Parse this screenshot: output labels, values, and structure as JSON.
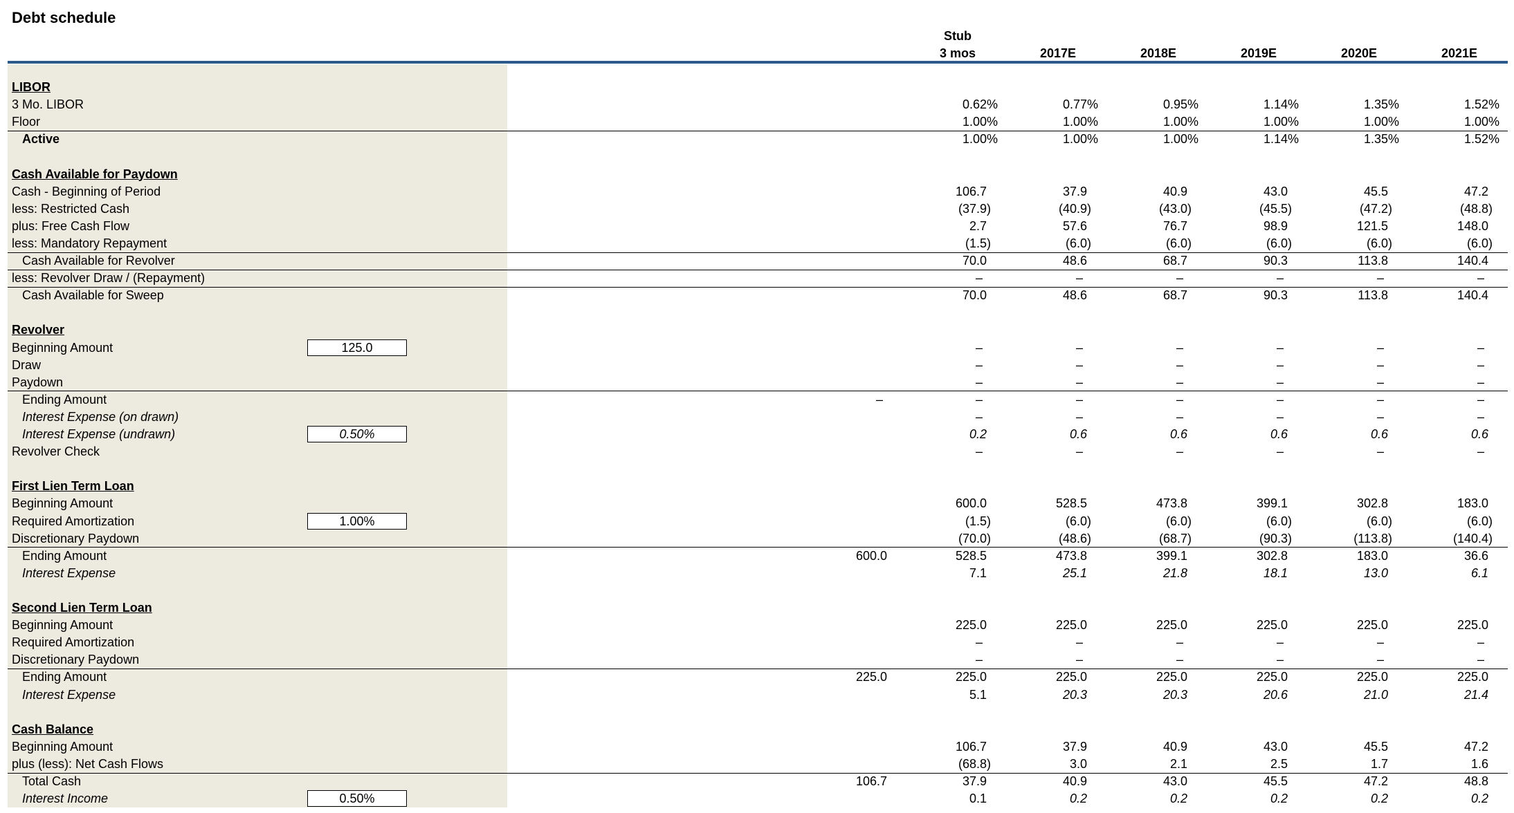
{
  "header": {
    "title": "Debt schedule",
    "stub_top": "Stub",
    "columns": [
      "3 mos",
      "2017E",
      "2018E",
      "2019E",
      "2020E",
      "2021E"
    ]
  },
  "sections": [
    {
      "title": "LIBOR",
      "rows": [
        {
          "label": "3 Mo. LIBOR",
          "values": [
            "0.62%",
            "0.77%",
            "0.95%",
            "1.14%",
            "1.35%",
            "1.52%"
          ]
        },
        {
          "label": "Floor",
          "values": [
            "1.00%",
            "1.00%",
            "1.00%",
            "1.00%",
            "1.00%",
            "1.00%"
          ]
        },
        {
          "label": "Active",
          "values": [
            "1.00%",
            "1.00%",
            "1.00%",
            "1.14%",
            "1.35%",
            "1.52%"
          ]
        }
      ]
    },
    {
      "title": "Cash Available for Paydown",
      "rows": [
        {
          "label": "Cash - Beginning of Period",
          "values": [
            "106.7",
            "37.9",
            "40.9",
            "43.0",
            "45.5",
            "47.2"
          ]
        },
        {
          "label": "less: Restricted Cash",
          "values": [
            "(37.9)",
            "(40.9)",
            "(43.0)",
            "(45.5)",
            "(47.2)",
            "(48.8)"
          ]
        },
        {
          "label": "plus: Free Cash Flow",
          "values": [
            "2.7",
            "57.6",
            "76.7",
            "98.9",
            "121.5",
            "148.0"
          ]
        },
        {
          "label": "less: Mandatory Repayment",
          "values": [
            "(1.5)",
            "(6.0)",
            "(6.0)",
            "(6.0)",
            "(6.0)",
            "(6.0)"
          ]
        },
        {
          "label": "Cash Available for Revolver",
          "values": [
            "70.0",
            "48.6",
            "68.7",
            "90.3",
            "113.8",
            "140.4"
          ]
        },
        {
          "label": "less: Revolver Draw / (Repayment)",
          "values": [
            "–",
            "–",
            "–",
            "–",
            "–",
            "–"
          ]
        },
        {
          "label": "Cash Available for Sweep",
          "values": [
            "70.0",
            "48.6",
            "68.7",
            "90.3",
            "113.8",
            "140.4"
          ]
        }
      ]
    },
    {
      "title": "Revolver",
      "rows": [
        {
          "label": "Beginning Amount",
          "input": "125.0",
          "values": [
            "–",
            "–",
            "–",
            "–",
            "–",
            "–"
          ]
        },
        {
          "label": "Draw",
          "values": [
            "–",
            "–",
            "–",
            "–",
            "–",
            "–"
          ]
        },
        {
          "label": "Paydown",
          "values": [
            "–",
            "–",
            "–",
            "–",
            "–",
            "–"
          ]
        },
        {
          "label": "Ending Amount",
          "pre": "–",
          "values": [
            "–",
            "–",
            "–",
            "–",
            "–",
            "–"
          ]
        },
        {
          "label": "Interest Expense (on drawn)",
          "values": [
            "–",
            "–",
            "–",
            "–",
            "–",
            "–"
          ]
        },
        {
          "label": "Interest Expense (undrawn)",
          "input": "0.50%",
          "values": [
            "0.2",
            "0.6",
            "0.6",
            "0.6",
            "0.6",
            "0.6"
          ]
        },
        {
          "label": "Revolver Check",
          "values": [
            "–",
            "–",
            "–",
            "–",
            "–",
            "–"
          ]
        }
      ]
    },
    {
      "title": "First Lien Term Loan",
      "rows": [
        {
          "label": "Beginning Amount",
          "values": [
            "600.0",
            "528.5",
            "473.8",
            "399.1",
            "302.8",
            "183.0"
          ]
        },
        {
          "label": "Required Amortization",
          "input": "1.00%",
          "values": [
            "(1.5)",
            "(6.0)",
            "(6.0)",
            "(6.0)",
            "(6.0)",
            "(6.0)"
          ]
        },
        {
          "label": "Discretionary Paydown",
          "values": [
            "(70.0)",
            "(48.6)",
            "(68.7)",
            "(90.3)",
            "(113.8)",
            "(140.4)"
          ]
        },
        {
          "label": "Ending Amount",
          "pre": "600.0",
          "values": [
            "528.5",
            "473.8",
            "399.1",
            "302.8",
            "183.0",
            "36.6"
          ]
        },
        {
          "label": "Interest Expense",
          "values": [
            "7.1",
            "25.1",
            "21.8",
            "18.1",
            "13.0",
            "6.1"
          ]
        }
      ]
    },
    {
      "title": "Second Lien Term Loan",
      "rows": [
        {
          "label": "Beginning Amount",
          "values": [
            "225.0",
            "225.0",
            "225.0",
            "225.0",
            "225.0",
            "225.0"
          ]
        },
        {
          "label": "Required Amortization",
          "values": [
            "–",
            "–",
            "–",
            "–",
            "–",
            "–"
          ]
        },
        {
          "label": "Discretionary Paydown",
          "values": [
            "–",
            "–",
            "–",
            "–",
            "–",
            "–"
          ]
        },
        {
          "label": "Ending Amount",
          "pre": "225.0",
          "values": [
            "225.0",
            "225.0",
            "225.0",
            "225.0",
            "225.0",
            "225.0"
          ]
        },
        {
          "label": "Interest Expense",
          "values": [
            "5.1",
            "20.3",
            "20.3",
            "20.6",
            "21.0",
            "21.4"
          ]
        }
      ]
    },
    {
      "title": "Cash Balance",
      "rows": [
        {
          "label": "Beginning Amount",
          "values": [
            "106.7",
            "37.9",
            "40.9",
            "43.0",
            "45.5",
            "47.2"
          ]
        },
        {
          "label": "plus (less): Net Cash Flows",
          "values": [
            "(68.8)",
            "3.0",
            "2.1",
            "2.5",
            "1.7",
            "1.6"
          ]
        },
        {
          "label": "Total Cash",
          "pre": "106.7",
          "values": [
            "37.9",
            "40.9",
            "43.0",
            "45.5",
            "47.2",
            "48.8"
          ]
        },
        {
          "label": "Interest Income",
          "input": "0.50%",
          "values": [
            "0.1",
            "0.2",
            "0.2",
            "0.2",
            "0.2",
            "0.2"
          ]
        }
      ]
    }
  ]
}
